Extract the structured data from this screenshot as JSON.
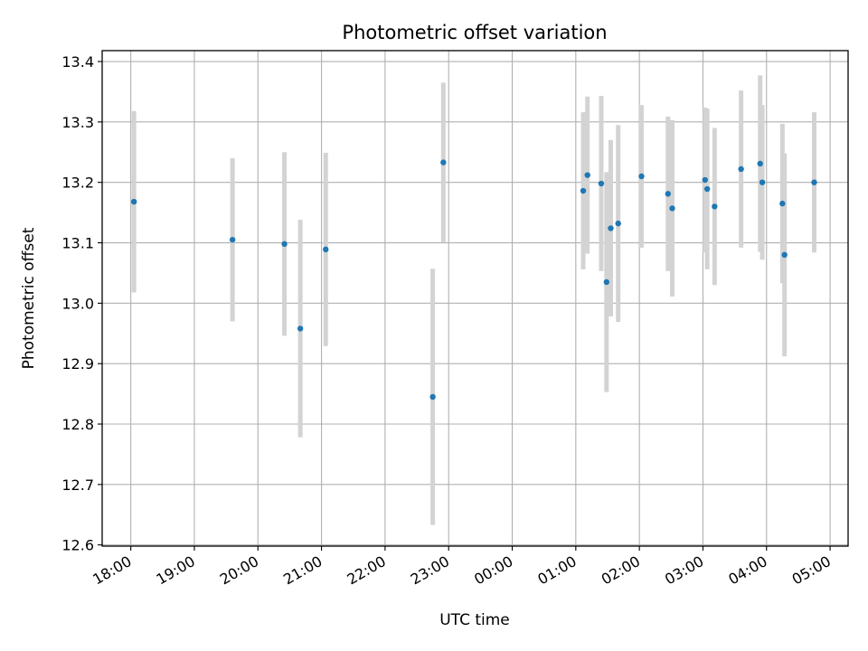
{
  "chart_data": {
    "type": "scatter",
    "title": "Photometric offset variation",
    "xlabel": "UTC time",
    "ylabel": "Photometric offset",
    "x_unit": "UTC time (HH:MM)",
    "xlim": [
      "17:33",
      "05:17"
    ],
    "ylim": [
      12.598,
      13.418
    ],
    "grid": true,
    "x_ticks": [
      "18:00",
      "19:00",
      "20:00",
      "21:00",
      "22:00",
      "23:00",
      "00:00",
      "01:00",
      "02:00",
      "03:00",
      "04:00",
      "05:00"
    ],
    "y_ticks": [
      "12.6",
      "12.7",
      "12.8",
      "12.9",
      "13.0",
      "13.1",
      "13.2",
      "13.3",
      "13.4"
    ],
    "marker_color": "#1f77b4",
    "errorbar_color": "#d3d3d3",
    "points": [
      {
        "x": "18:03",
        "y": 13.168,
        "err": 0.15
      },
      {
        "x": "19:36",
        "y": 13.105,
        "err": 0.135
      },
      {
        "x": "20:25",
        "y": 13.098,
        "err": 0.152
      },
      {
        "x": "20:40",
        "y": 12.958,
        "err": 0.18
      },
      {
        "x": "21:04",
        "y": 13.089,
        "err": 0.16
      },
      {
        "x": "22:45",
        "y": 12.845,
        "err": 0.212
      },
      {
        "x": "22:55",
        "y": 13.233,
        "err": 0.132
      },
      {
        "x": "01:07",
        "y": 13.186,
        "err": 0.13
      },
      {
        "x": "01:11",
        "y": 13.212,
        "err": 0.13
      },
      {
        "x": "01:24",
        "y": 13.198,
        "err": 0.145
      },
      {
        "x": "01:29",
        "y": 13.035,
        "err": 0.182
      },
      {
        "x": "01:33",
        "y": 13.124,
        "err": 0.146
      },
      {
        "x": "01:40",
        "y": 13.132,
        "err": 0.163
      },
      {
        "x": "02:02",
        "y": 13.21,
        "err": 0.118
      },
      {
        "x": "02:27",
        "y": 13.181,
        "err": 0.128
      },
      {
        "x": "02:31",
        "y": 13.157,
        "err": 0.146
      },
      {
        "x": "03:02",
        "y": 13.204,
        "err": 0.12
      },
      {
        "x": "03:04",
        "y": 13.189,
        "err": 0.133
      },
      {
        "x": "03:11",
        "y": 13.16,
        "err": 0.13
      },
      {
        "x": "03:36",
        "y": 13.222,
        "err": 0.13
      },
      {
        "x": "03:54",
        "y": 13.231,
        "err": 0.146
      },
      {
        "x": "03:56",
        "y": 13.2,
        "err": 0.128
      },
      {
        "x": "04:15",
        "y": 13.165,
        "err": 0.132
      },
      {
        "x": "04:17",
        "y": 13.08,
        "err": 0.168
      },
      {
        "x": "04:45",
        "y": 13.2,
        "err": 0.116
      }
    ]
  }
}
